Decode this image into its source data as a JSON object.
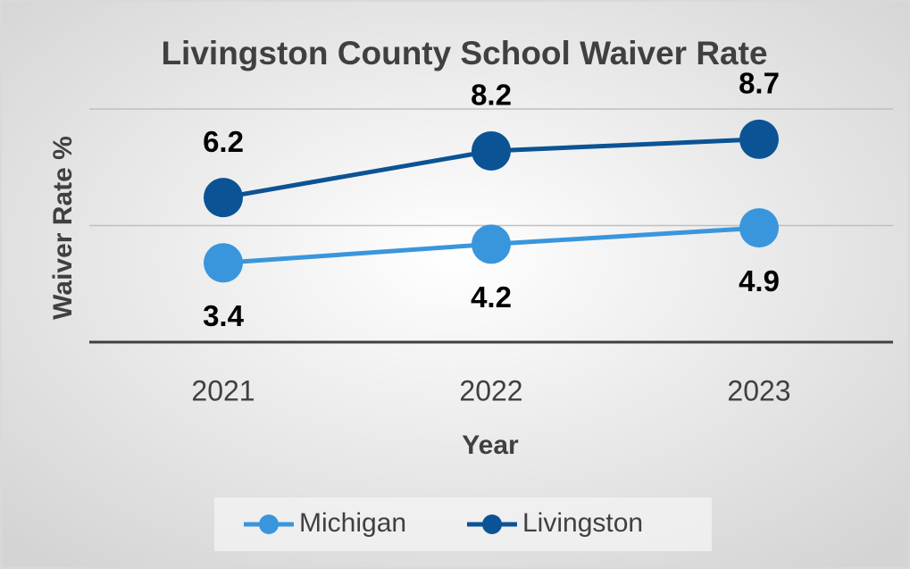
{
  "chart_data": {
    "type": "line",
    "title": "Livingston County School Waiver Rate",
    "x_label": "Year",
    "y_label": "Waiver Rate %",
    "categories": [
      "2021",
      "2022",
      "2023"
    ],
    "series": [
      {
        "name": "Michigan",
        "color": "#3a96dc",
        "values": [
          3.4,
          4.2,
          4.9
        ]
      },
      {
        "name": "Livingston",
        "color": "#0b5394",
        "values": [
          6.2,
          8.2,
          8.7
        ]
      }
    ],
    "ylim": [
      0,
      10
    ],
    "yticks": [
      0,
      5,
      10
    ],
    "grid": true,
    "legend": "bottom"
  }
}
